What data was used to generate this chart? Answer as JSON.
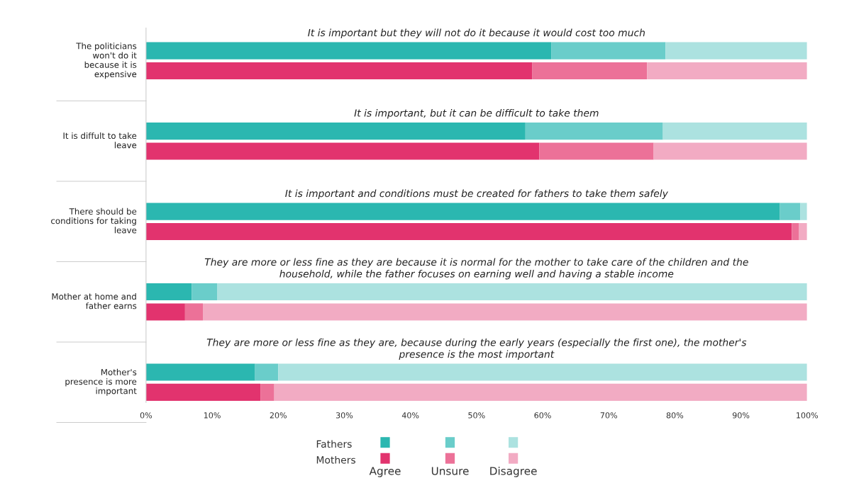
{
  "chart_data": {
    "type": "bar",
    "orientation": "horizontal",
    "stacked": true,
    "categories": [
      null,
      null,
      "The politicians\nwon't do it\nbecause it is\nexpensive",
      null,
      null,
      null,
      "It is diffult to take\nleave",
      null,
      null,
      null,
      "There should be\nconditions for taking\nleave",
      null,
      null,
      null,
      "Mother at home and\nfather earns",
      null,
      null,
      null,
      "Mother's\npresence is more\nimportant",
      null
    ],
    "series": [
      {
        "name": "Agree",
        "colors": [
          null,
          null,
          "#2bb7b0",
          "#e2336e",
          null,
          null,
          "#2bb7b0",
          "#e2336e",
          null,
          null,
          "#2bb7b0",
          "#e2336e",
          null,
          null,
          "#2bb7b0",
          "#e2336e",
          null,
          null,
          "#2bb7b0",
          "#e2336e"
        ],
        "values": [
          null,
          null,
          61.3,
          58.4,
          null,
          null,
          57.4,
          59.5,
          null,
          null,
          95.9,
          97.7,
          null,
          null,
          6.9,
          5.9,
          null,
          null,
          16.5,
          17.3
        ]
      },
      {
        "name": "Unsure",
        "colors": [
          null,
          null,
          "#6acdca",
          "#ec7198",
          null,
          null,
          "#6acdca",
          "#ec7198",
          null,
          null,
          "#6acdca",
          "#ec7198",
          null,
          null,
          "#6acdca",
          "#ec7198",
          null,
          null,
          "#6acdca",
          "#ec7198"
        ],
        "values": [
          null,
          null,
          17.3,
          17.4,
          null,
          null,
          20.8,
          17.3,
          null,
          null,
          3.1,
          1.1,
          null,
          null,
          3.9,
          2.7,
          null,
          null,
          3.5,
          2.1
        ]
      },
      {
        "name": "Disagree",
        "colors": [
          null,
          null,
          "#ace2e0",
          "#f2abc3",
          null,
          null,
          "#ace2e0",
          "#f2abc3",
          null,
          null,
          "#ace2e0",
          "#f2abc3",
          null,
          null,
          "#ace2e0",
          "#f2abc3",
          null,
          null,
          "#ace2e0",
          "#f2abc3"
        ],
        "values": [
          null,
          null,
          21.4,
          24.2,
          null,
          null,
          21.8,
          23.2,
          null,
          null,
          1.0,
          1.2,
          null,
          null,
          89.2,
          91.4,
          null,
          null,
          80.0,
          80.6
        ]
      }
    ],
    "xlim": [
      0,
      100
    ],
    "xticks": [
      {
        "value": 0,
        "label": "0%"
      },
      {
        "value": 10,
        "label": "10%"
      },
      {
        "value": 20,
        "label": "20%"
      },
      {
        "value": 30,
        "label": "30%"
      },
      {
        "value": 40,
        "label": "40%"
      },
      {
        "value": 50,
        "label": "50%"
      },
      {
        "value": 60,
        "label": "60%"
      },
      {
        "value": 70,
        "label": "70%"
      },
      {
        "value": 80,
        "label": "80%"
      },
      {
        "value": 90,
        "label": "90%"
      },
      {
        "value": 100,
        "label": "100%"
      }
    ],
    "annotations": [
      "It is important but they will not do it because it would cost too much",
      "It is important, but it can be difficult to take them",
      "It is important and conditions must be created for fathers to take them safely",
      "They are more or less fine as they are because it is normal for the mother to take care of the children and the\nhousehold, while the father focuses on earning well and having a stable income",
      "They are more or less fine as they are, because during the early years (especially the first one), the mother's\npresence is the most important",
      "Fathers",
      "Mothers"
    ],
    "legend": "bottom"
  }
}
